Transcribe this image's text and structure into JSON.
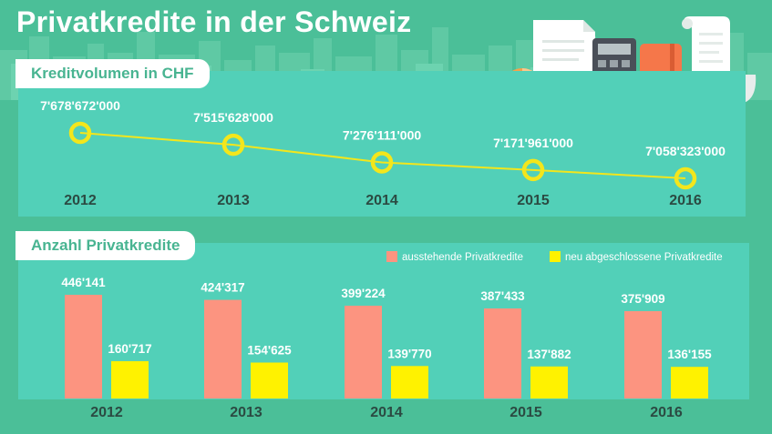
{
  "page_title": "Privatkredite in der Schweiz",
  "colors": {
    "background": "#4bbf98",
    "panel": "#52d0b8",
    "line": "#f3e61c",
    "bar_outstanding": "#fc9480",
    "bar_new": "#fff200",
    "label_text": "#ffffff",
    "year_text": "#2b4a42"
  },
  "icons": [
    "pie-chart-icon",
    "document-icon",
    "calculator-icon",
    "coin-stack-icon",
    "credit-card-icon",
    "notebook-icon",
    "receipt-icon"
  ],
  "chart_data": [
    {
      "type": "line",
      "title": "Kreditvolumen in CHF",
      "categories": [
        "2012",
        "2013",
        "2014",
        "2015",
        "2016"
      ],
      "values": [
        7678672000,
        7515628000,
        7276111000,
        7171961000,
        7058323000
      ],
      "value_labels": [
        "7'678'672'000",
        "7'515'628'000",
        "7'276'111'000",
        "7'171'961'000",
        "7'058'323'000"
      ],
      "grid": false
    },
    {
      "type": "bar",
      "title": "Anzahl Privatkredite",
      "categories": [
        "2012",
        "2013",
        "2014",
        "2015",
        "2016"
      ],
      "legend_position": "top-right",
      "series": [
        {
          "name": "ausstehende Privatkredite",
          "values": [
            446141,
            424317,
            399224,
            387433,
            375909
          ],
          "value_labels": [
            "446'141",
            "424'317",
            "399'224",
            "387'433",
            "375'909"
          ]
        },
        {
          "name": "neu abgeschlossene Privatkredite",
          "values": [
            160717,
            154625,
            139770,
            137882,
            136155
          ],
          "value_labels": [
            "160'717",
            "154'625",
            "139'770",
            "137'882",
            "136'155"
          ]
        }
      ],
      "grid": false
    }
  ]
}
